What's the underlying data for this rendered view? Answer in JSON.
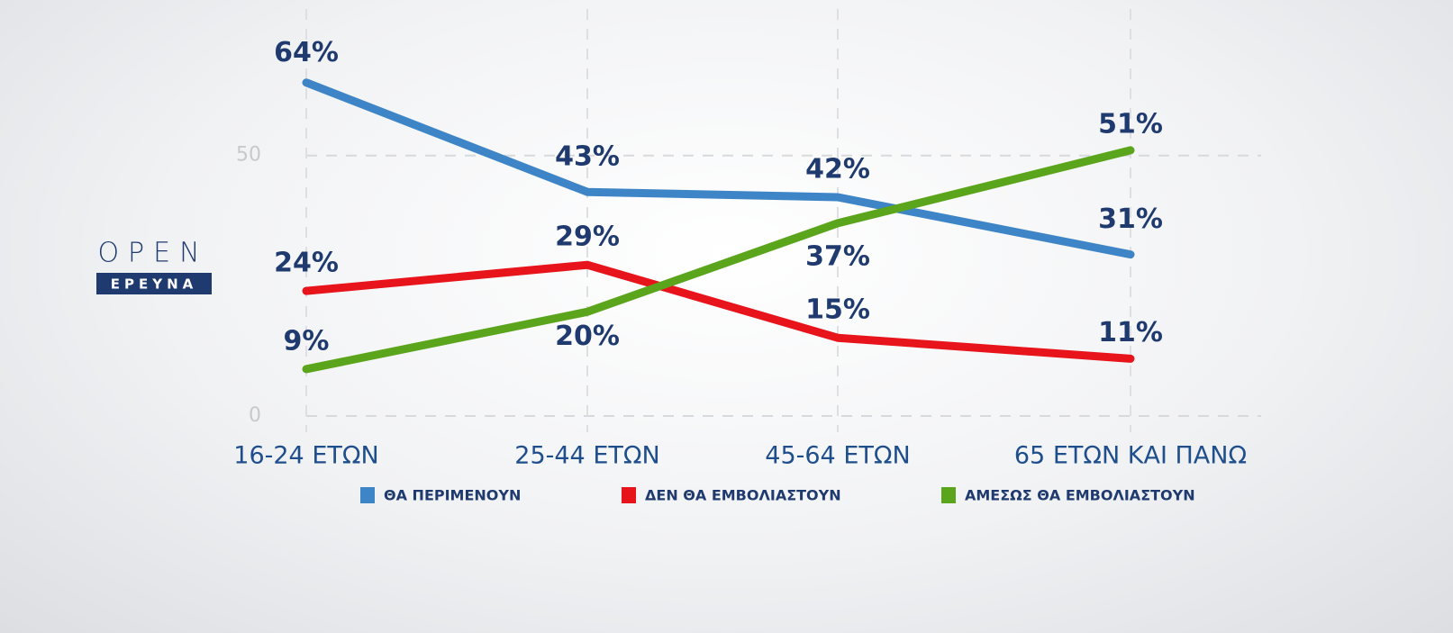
{
  "logo": {
    "top": "OPEN",
    "bottom": "ΕΡΕΥΝΑ"
  },
  "chart_data": {
    "type": "line",
    "categories": [
      "16-24 ΕΤΩΝ",
      "25-44 ΕΤΩΝ",
      "45-64 ΕΤΩΝ",
      "65 ΕΤΩΝ ΚΑΙ ΠΑΝΩ"
    ],
    "series": [
      {
        "name": "ΘΑ ΠΕΡΙΜΕΝΟΥΝ",
        "color": "#3d85c6",
        "values": [
          64,
          43,
          42,
          31
        ],
        "value_labels": [
          "64%",
          "43%",
          "42%",
          "31%"
        ]
      },
      {
        "name": "ΔΕΝ ΘΑ ΕΜΒΟΛΙΑΣΤΟΥΝ",
        "color": "#e8141b",
        "values": [
          24,
          29,
          15,
          11
        ],
        "value_labels": [
          "24%",
          "29%",
          "15%",
          "11%"
        ]
      },
      {
        "name": "ΑΜΕΣΩΣ ΘΑ ΕΜΒΟΛΙΑΣΤΟΥΝ",
        "color": "#5aa51b",
        "values": [
          9,
          20,
          37,
          51
        ],
        "value_labels": [
          "9%",
          "20%",
          "37%",
          "51%"
        ]
      }
    ],
    "ylim": [
      0,
      70
    ],
    "yticks": [
      0,
      50
    ],
    "grid": true,
    "legend": "bottom"
  }
}
